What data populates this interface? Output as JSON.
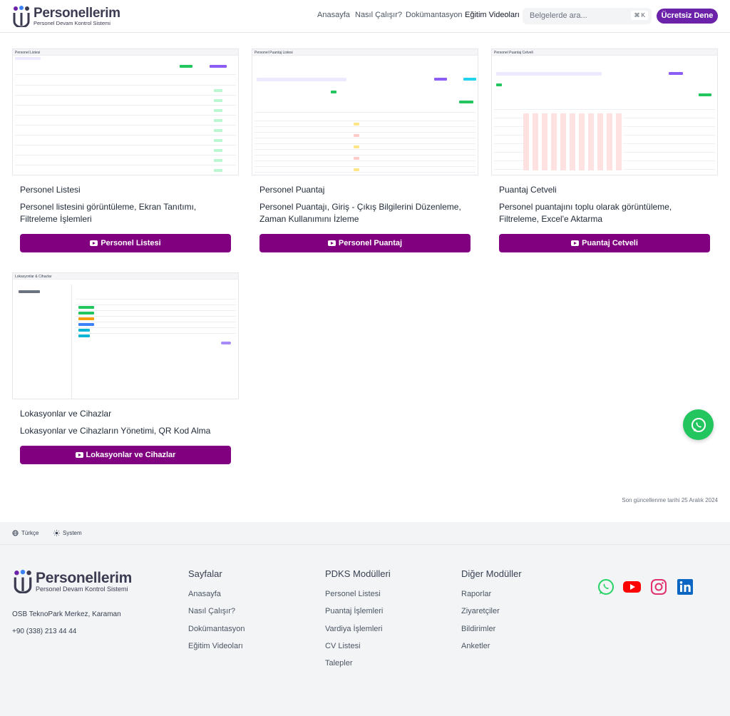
{
  "brand": {
    "name": "Personellerim",
    "tagline": "Personel Devam Kontrol Sistemi"
  },
  "nav": {
    "home": "Anasayfa",
    "how": "Nasıl Çalışır?",
    "docs": "Dokümantasyon",
    "videos": "Eğitim Videoları"
  },
  "search": {
    "placeholder": "Belgelerde ara...",
    "shortcut": "⌘ K"
  },
  "cta": "Ücretsiz Dene",
  "cards": [
    {
      "title": "Personel Listesi",
      "desc": "Personel listesini görüntüleme, Ekran Tanıtımı, Filtreleme İşlemleri",
      "button": "Personel Listesi",
      "screen_title": "Personel Listesi"
    },
    {
      "title": "Personel Puantaj",
      "desc": "Personel Puantajı, Giriş - Çıkış Bilgilerini Düzenleme, Zaman Kullanımını İzleme",
      "button": "Personel Puantaj",
      "screen_title": "Personel Puantaj Listesi"
    },
    {
      "title": "Puantaj Cetveli",
      "desc": "Personel puantajını toplu olarak görüntüleme, Filtreleme, Excel'e Aktarma",
      "button": "Puantaj Cetveli",
      "screen_title": "Personel Puantaj Cetveli"
    },
    {
      "title": "Lokasyonlar ve Cihazlar",
      "desc": "Lokasyonlar ve Cihazların Yönetimi, QR Kod Alma",
      "button": "Lokasyonlar ve Cihazlar",
      "screen_title": "Lokasyonlar & Cihazlar"
    }
  ],
  "updated": "Son güncellenme tarihi 25 Aralık 2024",
  "language": "Türkçe",
  "theme": "System",
  "footer": {
    "address": "OSB TeknoPark Merkez, Karaman",
    "phone": "+90 (338) 213 44 44",
    "columns": [
      {
        "title": "Sayfalar",
        "links": [
          "Anasayfa",
          "Nasıl Çalışır?",
          "Dokümantasyon",
          "Eğitim Videoları"
        ]
      },
      {
        "title": "PDKS Modülleri",
        "links": [
          "Personel Listesi",
          "Puantaj İşlemleri",
          "Vardiya İşlemleri",
          "CV Listesi",
          "Talepler"
        ]
      },
      {
        "title": "Diğer Modüller",
        "links": [
          "Raporlar",
          "Ziyaretçiler",
          "Bildirimler",
          "Anketler"
        ]
      }
    ]
  },
  "colors": {
    "brand_purple": "#800080",
    "cta_purple": "#6b21a8",
    "whatsapp": "#25d366",
    "youtube": "#ff0000",
    "linkedin": "#0a66c2"
  }
}
